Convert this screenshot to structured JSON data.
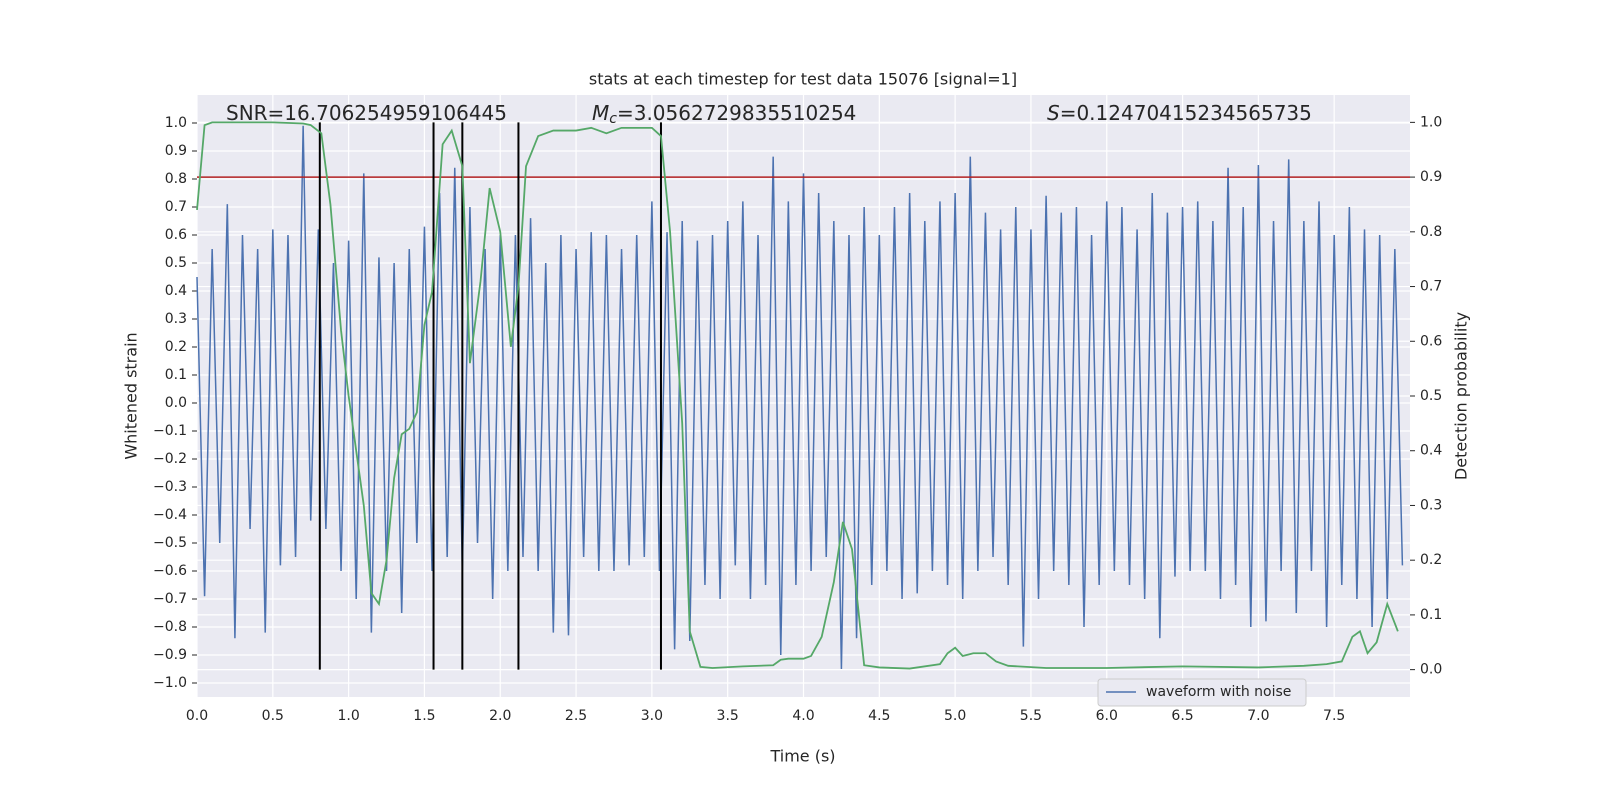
{
  "chart_data": {
    "type": "line",
    "title": "stats at each timestep for test data 15076 [signal=1]",
    "xlabel": "Time (s)",
    "ylabel": "Whitened strain",
    "y2label": "Detection probability",
    "annotations": [
      {
        "text": "SNR=16.706254959106445"
      },
      {
        "symbol": "M",
        "subscript": "c",
        "text": "=3.0562729835510254"
      },
      {
        "symbol": "S",
        "text": "=0.12470415234565735"
      }
    ],
    "xlim": [
      0,
      8
    ],
    "ylim": [
      -1.05,
      1.1
    ],
    "y2lim": [
      -0.05,
      1.05
    ],
    "grid": true,
    "legend": "lower right",
    "xticks": [
      {
        "value": 0,
        "label": "0.0"
      },
      {
        "value": 0.5,
        "label": "0.5"
      },
      {
        "value": 1,
        "label": "1.0"
      },
      {
        "value": 1.5,
        "label": "1.5"
      },
      {
        "value": 2,
        "label": "2.0"
      },
      {
        "value": 2.5,
        "label": "2.5"
      },
      {
        "value": 3,
        "label": "3.0"
      },
      {
        "value": 3.5,
        "label": "3.5"
      },
      {
        "value": 4,
        "label": "4.0"
      },
      {
        "value": 4.5,
        "label": "4.5"
      },
      {
        "value": 5,
        "label": "5.0"
      },
      {
        "value": 5.5,
        "label": "5.5"
      },
      {
        "value": 6,
        "label": "6.0"
      },
      {
        "value": 6.5,
        "label": "6.5"
      },
      {
        "value": 7,
        "label": "7.0"
      },
      {
        "value": 7.5,
        "label": "7.5"
      }
    ],
    "yticks": [
      {
        "value": -1,
        "label": "−1.0"
      },
      {
        "value": -0.9,
        "label": "−0.9"
      },
      {
        "value": -0.8,
        "label": "−0.8"
      },
      {
        "value": -0.7,
        "label": "−0.7"
      },
      {
        "value": -0.6,
        "label": "−0.6"
      },
      {
        "value": -0.5,
        "label": "−0.5"
      },
      {
        "value": -0.4,
        "label": "−0.4"
      },
      {
        "value": -0.3,
        "label": "−0.3"
      },
      {
        "value": -0.2,
        "label": "−0.2"
      },
      {
        "value": -0.1,
        "label": "−0.1"
      },
      {
        "value": 0,
        "label": "0.0"
      },
      {
        "value": 0.1,
        "label": "0.1"
      },
      {
        "value": 0.2,
        "label": "0.2"
      },
      {
        "value": 0.3,
        "label": "0.3"
      },
      {
        "value": 0.4,
        "label": "0.4"
      },
      {
        "value": 0.5,
        "label": "0.5"
      },
      {
        "value": 0.6,
        "label": "0.6"
      },
      {
        "value": 0.7,
        "label": "0.7"
      },
      {
        "value": 0.8,
        "label": "0.8"
      },
      {
        "value": 0.9,
        "label": "0.9"
      },
      {
        "value": 1,
        "label": "1.0"
      }
    ],
    "y2ticks": [
      {
        "value": 0,
        "label": "0.0"
      },
      {
        "value": 0.1,
        "label": "0.1"
      },
      {
        "value": 0.2,
        "label": "0.2"
      },
      {
        "value": 0.3,
        "label": "0.3"
      },
      {
        "value": 0.4,
        "label": "0.4"
      },
      {
        "value": 0.5,
        "label": "0.5"
      },
      {
        "value": 0.6,
        "label": "0.6"
      },
      {
        "value": 0.7,
        "label": "0.7"
      },
      {
        "value": 0.8,
        "label": "0.8"
      },
      {
        "value": 0.9,
        "label": "0.9"
      },
      {
        "value": 1,
        "label": "1.0"
      }
    ],
    "series": [
      {
        "name": "waveform with noise",
        "color": "#4c72b0",
        "x": [
          0,
          0.05,
          0.1,
          0.15,
          0.2,
          0.25,
          0.3,
          0.35,
          0.4,
          0.45,
          0.5,
          0.55,
          0.6,
          0.65,
          0.7,
          0.75,
          0.8,
          0.85,
          0.9,
          0.95,
          1,
          1.05,
          1.1,
          1.15,
          1.2,
          1.25,
          1.3,
          1.35,
          1.4,
          1.45,
          1.5,
          1.55,
          1.6,
          1.65,
          1.7,
          1.75,
          1.8,
          1.85,
          1.9,
          1.95,
          2,
          2.05,
          2.1,
          2.15,
          2.2,
          2.25,
          2.3,
          2.35,
          2.4,
          2.45,
          2.5,
          2.55,
          2.6,
          2.65,
          2.7,
          2.75,
          2.8,
          2.85,
          2.9,
          2.95,
          3,
          3.05,
          3.1,
          3.15,
          3.2,
          3.25,
          3.3,
          3.35,
          3.4,
          3.45,
          3.5,
          3.55,
          3.6,
          3.65,
          3.7,
          3.75,
          3.8,
          3.85,
          3.9,
          3.95,
          4,
          4.05,
          4.1,
          4.15,
          4.2,
          4.25,
          4.3,
          4.35,
          4.4,
          4.45,
          4.5,
          4.55,
          4.6,
          4.65,
          4.7,
          4.75,
          4.8,
          4.85,
          4.9,
          4.95,
          5,
          5.05,
          5.1,
          5.15,
          5.2,
          5.25,
          5.3,
          5.35,
          5.4,
          5.45,
          5.5,
          5.55,
          5.6,
          5.65,
          5.7,
          5.75,
          5.8,
          5.85,
          5.9,
          5.95,
          6,
          6.05,
          6.1,
          6.15,
          6.2,
          6.25,
          6.3,
          6.35,
          6.4,
          6.45,
          6.5,
          6.55,
          6.6,
          6.65,
          6.7,
          6.75,
          6.8,
          6.85,
          6.9,
          6.95,
          7,
          7.05,
          7.1,
          7.15,
          7.2,
          7.25,
          7.3,
          7.35,
          7.4,
          7.45,
          7.5,
          7.55,
          7.6,
          7.65,
          7.7,
          7.75,
          7.8,
          7.85,
          7.9,
          7.95
        ],
        "values": [
          0.45,
          -0.69,
          0.55,
          -0.5,
          0.71,
          -0.84,
          0.6,
          -0.45,
          0.55,
          -0.82,
          0.62,
          -0.58,
          0.6,
          -0.55,
          0.99,
          -0.42,
          0.62,
          -0.45,
          0.5,
          -0.6,
          0.58,
          -0.7,
          0.82,
          -0.82,
          0.52,
          -0.6,
          0.5,
          -0.75,
          0.55,
          -0.5,
          0.63,
          -0.6,
          0.75,
          -0.55,
          0.84,
          -0.6,
          0.7,
          -0.5,
          0.55,
          -0.7,
          0.6,
          -0.6,
          0.6,
          -0.55,
          0.66,
          -0.6,
          0.5,
          -0.82,
          0.6,
          -0.83,
          0.55,
          -0.55,
          0.61,
          -0.6,
          0.6,
          -0.6,
          0.55,
          -0.58,
          0.6,
          -0.55,
          0.72,
          -0.6,
          0.61,
          -0.88,
          0.65,
          -0.85,
          0.58,
          -0.65,
          0.6,
          -0.7,
          0.65,
          -0.58,
          0.72,
          -0.7,
          0.6,
          -0.65,
          0.88,
          -0.9,
          0.72,
          -0.65,
          0.82,
          -0.6,
          0.75,
          -0.55,
          0.65,
          -0.95,
          0.6,
          -0.84,
          0.7,
          -0.65,
          0.6,
          -0.6,
          0.7,
          -0.7,
          0.75,
          -0.68,
          0.65,
          -0.6,
          0.72,
          -0.65,
          0.75,
          -0.7,
          0.88,
          -0.6,
          0.68,
          -0.55,
          0.62,
          -0.65,
          0.7,
          -0.87,
          0.62,
          -0.7,
          0.74,
          -0.6,
          0.68,
          -0.65,
          0.7,
          -0.8,
          0.6,
          -0.65,
          0.72,
          -0.6,
          0.7,
          -0.65,
          0.62,
          -0.7,
          0.75,
          -0.84,
          0.68,
          -0.62,
          0.7,
          -0.6,
          0.72,
          -0.6,
          0.65,
          -0.7,
          0.84,
          -0.65,
          0.7,
          -0.8,
          0.85,
          -0.78,
          0.65,
          -0.6,
          0.87,
          -0.75,
          0.65,
          -0.6,
          0.72,
          -0.8,
          0.6,
          -0.65,
          0.7,
          -0.7,
          0.62,
          -0.8,
          0.6,
          -0.7,
          0.55,
          -0.58
        ]
      }
    ],
    "probability": {
      "color": "#55a868",
      "axis": "y2",
      "x": [
        0,
        0.05,
        0.1,
        0.3,
        0.5,
        0.7,
        0.75,
        0.82,
        0.88,
        0.95,
        1,
        1.1,
        1.15,
        1.2,
        1.25,
        1.3,
        1.35,
        1.4,
        1.45,
        1.5,
        1.55,
        1.62,
        1.68,
        1.75,
        1.8,
        1.87,
        1.93,
        2,
        2.07,
        2.12,
        2.17,
        2.25,
        2.35,
        2.5,
        2.6,
        2.7,
        2.8,
        3,
        3.06,
        3.12,
        3.2,
        3.25,
        3.32,
        3.4,
        3.6,
        3.8,
        3.85,
        3.9,
        4,
        4.05,
        4.12,
        4.2,
        4.26,
        4.32,
        4.4,
        4.5,
        4.7,
        4.9,
        4.95,
        5,
        5.05,
        5.12,
        5.2,
        5.27,
        5.35,
        5.6,
        6,
        6.5,
        7,
        7.3,
        7.45,
        7.55,
        7.62,
        7.67,
        7.72,
        7.78,
        7.85,
        7.92
      ],
      "values": [
        0.84,
        0.995,
        1,
        1,
        1,
        0.998,
        0.995,
        0.98,
        0.85,
        0.62,
        0.5,
        0.3,
        0.14,
        0.12,
        0.2,
        0.35,
        0.43,
        0.44,
        0.47,
        0.63,
        0.69,
        0.96,
        0.985,
        0.92,
        0.56,
        0.71,
        0.88,
        0.8,
        0.59,
        0.7,
        0.92,
        0.975,
        0.985,
        0.985,
        0.99,
        0.98,
        0.99,
        0.99,
        0.975,
        0.8,
        0.45,
        0.07,
        0.005,
        0.003,
        0.006,
        0.008,
        0.018,
        0.02,
        0.02,
        0.025,
        0.06,
        0.16,
        0.27,
        0.22,
        0.008,
        0.004,
        0.002,
        0.01,
        0.03,
        0.04,
        0.025,
        0.03,
        0.03,
        0.015,
        0.007,
        0.003,
        0.003,
        0.006,
        0.004,
        0.007,
        0.01,
        0.015,
        0.06,
        0.07,
        0.03,
        0.05,
        0.12,
        0.07
      ]
    },
    "threshold": {
      "value": 0.9,
      "axis": "y2",
      "color": "#b22222"
    },
    "vlines": {
      "x": [
        0.81,
        1.56,
        1.75,
        2.12,
        3.06
      ],
      "ymin": 0,
      "ymax": 1,
      "axis": "y2",
      "color": "#000000"
    }
  }
}
